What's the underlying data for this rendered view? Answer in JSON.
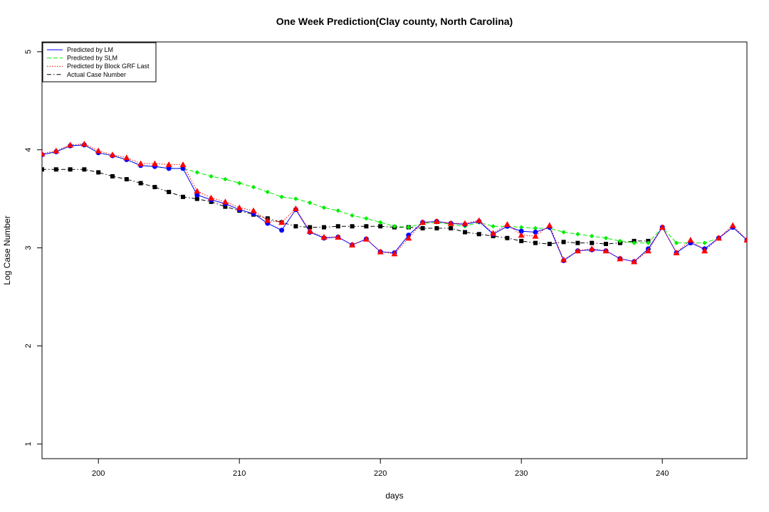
{
  "chart_data": {
    "type": "line",
    "title": "One Week Prediction(Clay county, North Carolina)",
    "xlabel": "days",
    "ylabel": "Log Case Number",
    "xlim": [
      196,
      246
    ],
    "ylim": [
      0.85,
      5.1
    ],
    "x_ticks": [
      200,
      210,
      220,
      230,
      240
    ],
    "y_ticks": [
      1,
      2,
      3,
      4,
      5
    ],
    "grid": false,
    "legend_position": "top-left",
    "x": [
      196,
      197,
      198,
      199,
      200,
      201,
      202,
      203,
      204,
      205,
      206,
      207,
      208,
      209,
      210,
      211,
      212,
      213,
      214,
      215,
      216,
      217,
      218,
      219,
      220,
      221,
      222,
      223,
      224,
      225,
      226,
      227,
      228,
      229,
      230,
      231,
      232,
      233,
      234,
      235,
      236,
      237,
      238,
      239,
      240,
      241,
      242,
      243,
      244,
      245,
      246
    ],
    "series": [
      {
        "name": "Predicted by LM",
        "color": "#0000ff",
        "marker": "circle",
        "line": "solid",
        "values": [
          3.95,
          3.98,
          4.04,
          4.05,
          3.97,
          3.94,
          3.9,
          3.84,
          3.83,
          3.81,
          3.81,
          3.54,
          3.49,
          3.45,
          3.39,
          3.35,
          3.25,
          3.18,
          3.39,
          3.16,
          3.1,
          3.11,
          3.03,
          3.09,
          2.96,
          2.95,
          3.13,
          3.26,
          3.27,
          3.25,
          3.24,
          3.27,
          3.14,
          3.22,
          3.17,
          3.16,
          3.21,
          2.87,
          2.97,
          2.98,
          2.97,
          2.89,
          2.86,
          2.99,
          3.21,
          2.95,
          3.05,
          2.99,
          3.1,
          3.21,
          3.08
        ]
      },
      {
        "name": "Predicted by SLM",
        "color": "#00ee00",
        "marker": "diamond",
        "line": "dashed",
        "values": [
          3.95,
          3.98,
          4.04,
          4.05,
          3.97,
          3.94,
          3.9,
          3.84,
          3.83,
          3.81,
          3.81,
          3.77,
          3.73,
          3.7,
          3.66,
          3.62,
          3.57,
          3.52,
          3.5,
          3.46,
          3.41,
          3.38,
          3.33,
          3.3,
          3.26,
          3.22,
          3.21,
          3.25,
          3.26,
          3.24,
          3.22,
          3.26,
          3.22,
          3.22,
          3.21,
          3.2,
          3.2,
          3.16,
          3.14,
          3.12,
          3.1,
          3.07,
          3.05,
          3.05,
          3.21,
          3.05,
          3.05,
          3.05,
          3.1,
          3.21,
          3.08
        ]
      },
      {
        "name": "Predicted by Block GRF Last",
        "color": "#ff0000",
        "marker": "triangle",
        "line": "dotted",
        "values": [
          3.96,
          3.99,
          4.05,
          4.06,
          3.99,
          3.95,
          3.92,
          3.86,
          3.86,
          3.85,
          3.85,
          3.58,
          3.51,
          3.47,
          3.41,
          3.38,
          3.28,
          3.26,
          3.4,
          3.17,
          3.11,
          3.11,
          3.03,
          3.09,
          2.96,
          2.94,
          3.1,
          3.26,
          3.27,
          3.25,
          3.25,
          3.28,
          3.15,
          3.24,
          3.13,
          3.12,
          3.23,
          2.88,
          2.97,
          2.99,
          2.97,
          2.89,
          2.86,
          2.97,
          3.21,
          2.95,
          3.08,
          2.97,
          3.1,
          3.23,
          3.08
        ]
      },
      {
        "name": "Actual Case Number",
        "color": "#000000",
        "marker": "square",
        "line": "dashdot",
        "values": [
          3.8,
          3.8,
          3.8,
          3.8,
          3.77,
          3.73,
          3.7,
          3.66,
          3.62,
          3.57,
          3.52,
          3.5,
          3.47,
          3.42,
          3.38,
          3.34,
          3.3,
          3.26,
          3.22,
          3.21,
          3.21,
          3.22,
          3.22,
          3.22,
          3.22,
          3.21,
          3.21,
          3.2,
          3.2,
          3.2,
          3.16,
          3.14,
          3.12,
          3.1,
          3.07,
          3.05,
          3.04,
          3.06,
          3.05,
          3.05,
          3.04,
          3.05,
          3.07,
          3.07,
          null,
          null,
          null,
          null,
          null,
          null,
          null
        ]
      }
    ]
  }
}
